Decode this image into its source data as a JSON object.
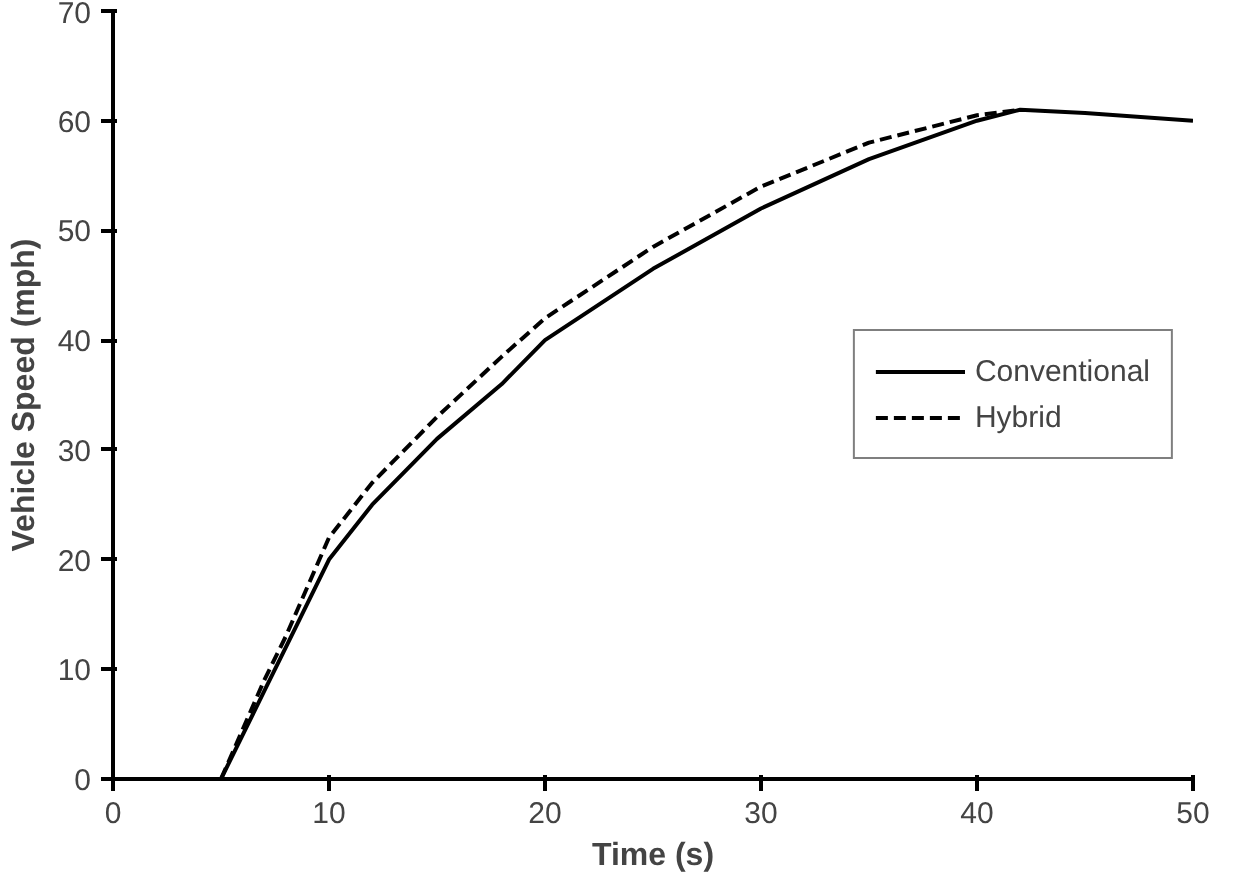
{
  "chart_data": {
    "type": "line",
    "xlabel": "Time (s)",
    "ylabel": "Vehicle Speed (mph)",
    "xlim": [
      0,
      50
    ],
    "ylim": [
      0,
      70
    ],
    "xticks": [
      0,
      10,
      20,
      30,
      40,
      50
    ],
    "yticks": [
      0,
      10,
      20,
      30,
      40,
      50,
      60,
      70
    ],
    "grid": false,
    "legend": "right",
    "series": [
      {
        "name": "Conventional",
        "color": "#000000",
        "line_style": "solid",
        "x": [
          5,
          6,
          7,
          8,
          10,
          12,
          15,
          18,
          20,
          25,
          30,
          35,
          40,
          42,
          45,
          50
        ],
        "values": [
          0,
          4,
          8,
          12,
          20,
          25,
          31,
          36,
          40,
          46.5,
          52,
          56.5,
          60,
          61,
          60.7,
          60
        ]
      },
      {
        "name": "Hybrid",
        "color": "#000000",
        "line_style": "dashed",
        "x": [
          5,
          6,
          7,
          8,
          10,
          12,
          15,
          18,
          20,
          25,
          30,
          35,
          40,
          42
        ],
        "values": [
          0,
          4.5,
          9,
          13,
          22,
          27,
          33,
          38.5,
          42,
          48.5,
          54,
          58,
          60.5,
          61
        ]
      }
    ]
  }
}
